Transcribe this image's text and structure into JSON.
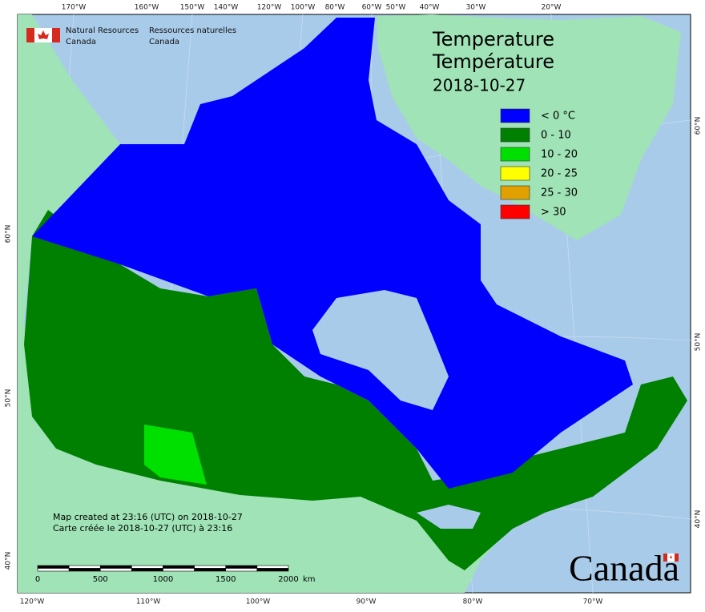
{
  "header": {
    "org_en": [
      "Natural Resources",
      "Canada"
    ],
    "org_fr": [
      "Ressources naturelles",
      "Canada"
    ]
  },
  "title": [
    "Temperature",
    "Température"
  ],
  "date": "2018-10-27",
  "legend": [
    {
      "label": "< 0 °C",
      "color": "#0000ff"
    },
    {
      "label": "0 - 10",
      "color": "#008000"
    },
    {
      "label": "10 - 20",
      "color": "#00e000"
    },
    {
      "label": "20 - 25",
      "color": "#ffff00"
    },
    {
      "label": "25 - 30",
      "color": "#e0a000"
    },
    {
      "label": "> 30",
      "color": "#ff0000"
    }
  ],
  "graticule": {
    "top": [
      "170°W",
      "160°W",
      "150°W",
      "140°W",
      "120°W",
      "100°W",
      "80°W",
      "60°W",
      "50°W",
      "40°W",
      "30°W",
      "20°W"
    ],
    "bottom": [
      "120°W",
      "110°W",
      "100°W",
      "90°W",
      "80°W",
      "70°W"
    ],
    "left": [
      "60°N",
      "50°N",
      "40°N"
    ],
    "right": [
      "60°N",
      "50°N",
      "40°N"
    ]
  },
  "notes": [
    "Map created at 23:16 (UTC) on 2018-10-27",
    "Carte créée le 2018-10-27 (UTC) à 23:16"
  ],
  "scale_bar": {
    "labels": [
      "0",
      "500",
      "1000",
      "1500",
      "2000"
    ],
    "unit": "km"
  },
  "wordmark": "Canada"
}
